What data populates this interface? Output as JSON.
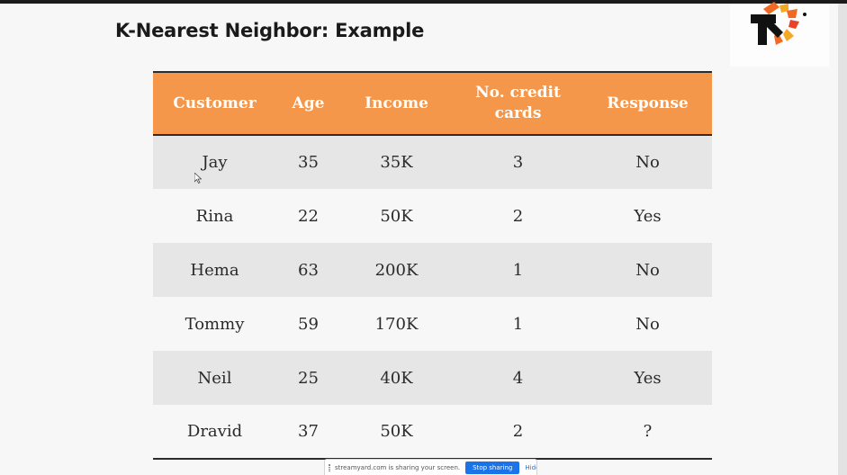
{
  "slide": {
    "title": "K-Nearest Neighbor: Example"
  },
  "logo": {
    "icon": "starburst-arrow-logo",
    "colors": {
      "arrow": "#111111",
      "rays_orange": "#f26a21",
      "rays_yellow": "#f7a823",
      "rays_red": "#e8442a"
    }
  },
  "table": {
    "columns": [
      "Customer",
      "Age",
      "Income",
      "No. credit cards",
      "Response"
    ],
    "rows": [
      {
        "customer": "Jay",
        "age": "35",
        "income": "35K",
        "cards": "3",
        "response": "No"
      },
      {
        "customer": "Rina",
        "age": "22",
        "income": "50K",
        "cards": "2",
        "response": "Yes"
      },
      {
        "customer": "Hema",
        "age": "63",
        "income": "200K",
        "cards": "1",
        "response": "No"
      },
      {
        "customer": "Tommy",
        "age": "59",
        "income": "170K",
        "cards": "1",
        "response": "No"
      },
      {
        "customer": "Neil",
        "age": "25",
        "income": "40K",
        "cards": "4",
        "response": "Yes"
      },
      {
        "customer": "Dravid",
        "age": "37",
        "income": "50K",
        "cards": "2",
        "response": "?"
      }
    ],
    "colors": {
      "header_bg": "#f4974a",
      "header_text": "#ffffff",
      "row_stripe": "#e6e6e6"
    }
  },
  "share_bar": {
    "message": "streamyard.com is sharing your screen.",
    "stop_label": "Stop sharing",
    "hide_label": "Hide",
    "accent": "#1a73e8"
  }
}
